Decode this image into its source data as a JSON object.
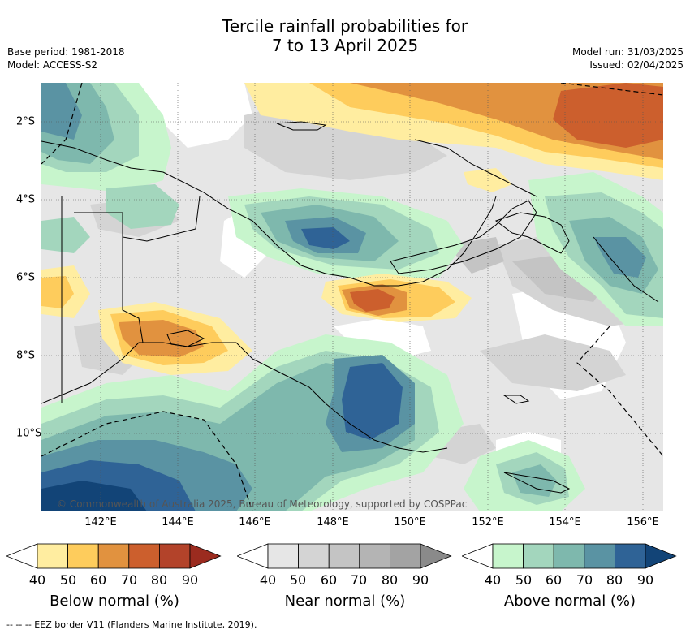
{
  "title_line1": "Tercile rainfall probabilities for",
  "title_line2": "7 to 13 April 2025",
  "base_period": "Base period: 1981-2018",
  "model": "Model: ACCESS-S2",
  "model_run": "Model run: 31/03/2025",
  "issued": "Issued: 02/04/2025",
  "lon_labels": [
    "142°E",
    "144°E",
    "146°E",
    "148°E",
    "150°E",
    "152°E",
    "154°E",
    "156°E"
  ],
  "lat_labels": [
    "2°S",
    "4°S",
    "6°S",
    "8°S",
    "10°S"
  ],
  "copyright": "© Commonwealth of Australia 2025, Bureau of Meteorology, supported by COSPPac",
  "footer": "--  --  -- EEZ border V11 (Flanders Marine Institute, 2019).",
  "colorbars": [
    {
      "title": "Below normal (%)",
      "ticks": [
        "40",
        "50",
        "60",
        "70",
        "80",
        "90"
      ],
      "colors": [
        "#ffeda0",
        "#fecc5c",
        "#e1923f",
        "#cc5f2d",
        "#b3432a",
        "#9b2b1f"
      ]
    },
    {
      "title": "Near normal (%)",
      "ticks": [
        "40",
        "50",
        "60",
        "70",
        "80",
        "90"
      ],
      "colors": [
        "#e6e6e6",
        "#d4d4d4",
        "#c4c4c4",
        "#b4b4b4",
        "#a3a3a3",
        "#8a8a8a"
      ]
    },
    {
      "title": "Above normal (%)",
      "ticks": [
        "40",
        "50",
        "60",
        "70",
        "80",
        "90"
      ],
      "colors": [
        "#c7f5cc",
        "#a3d6bd",
        "#7eb8ad",
        "#5a93a3",
        "#2f6396",
        "#124477"
      ]
    }
  ]
}
